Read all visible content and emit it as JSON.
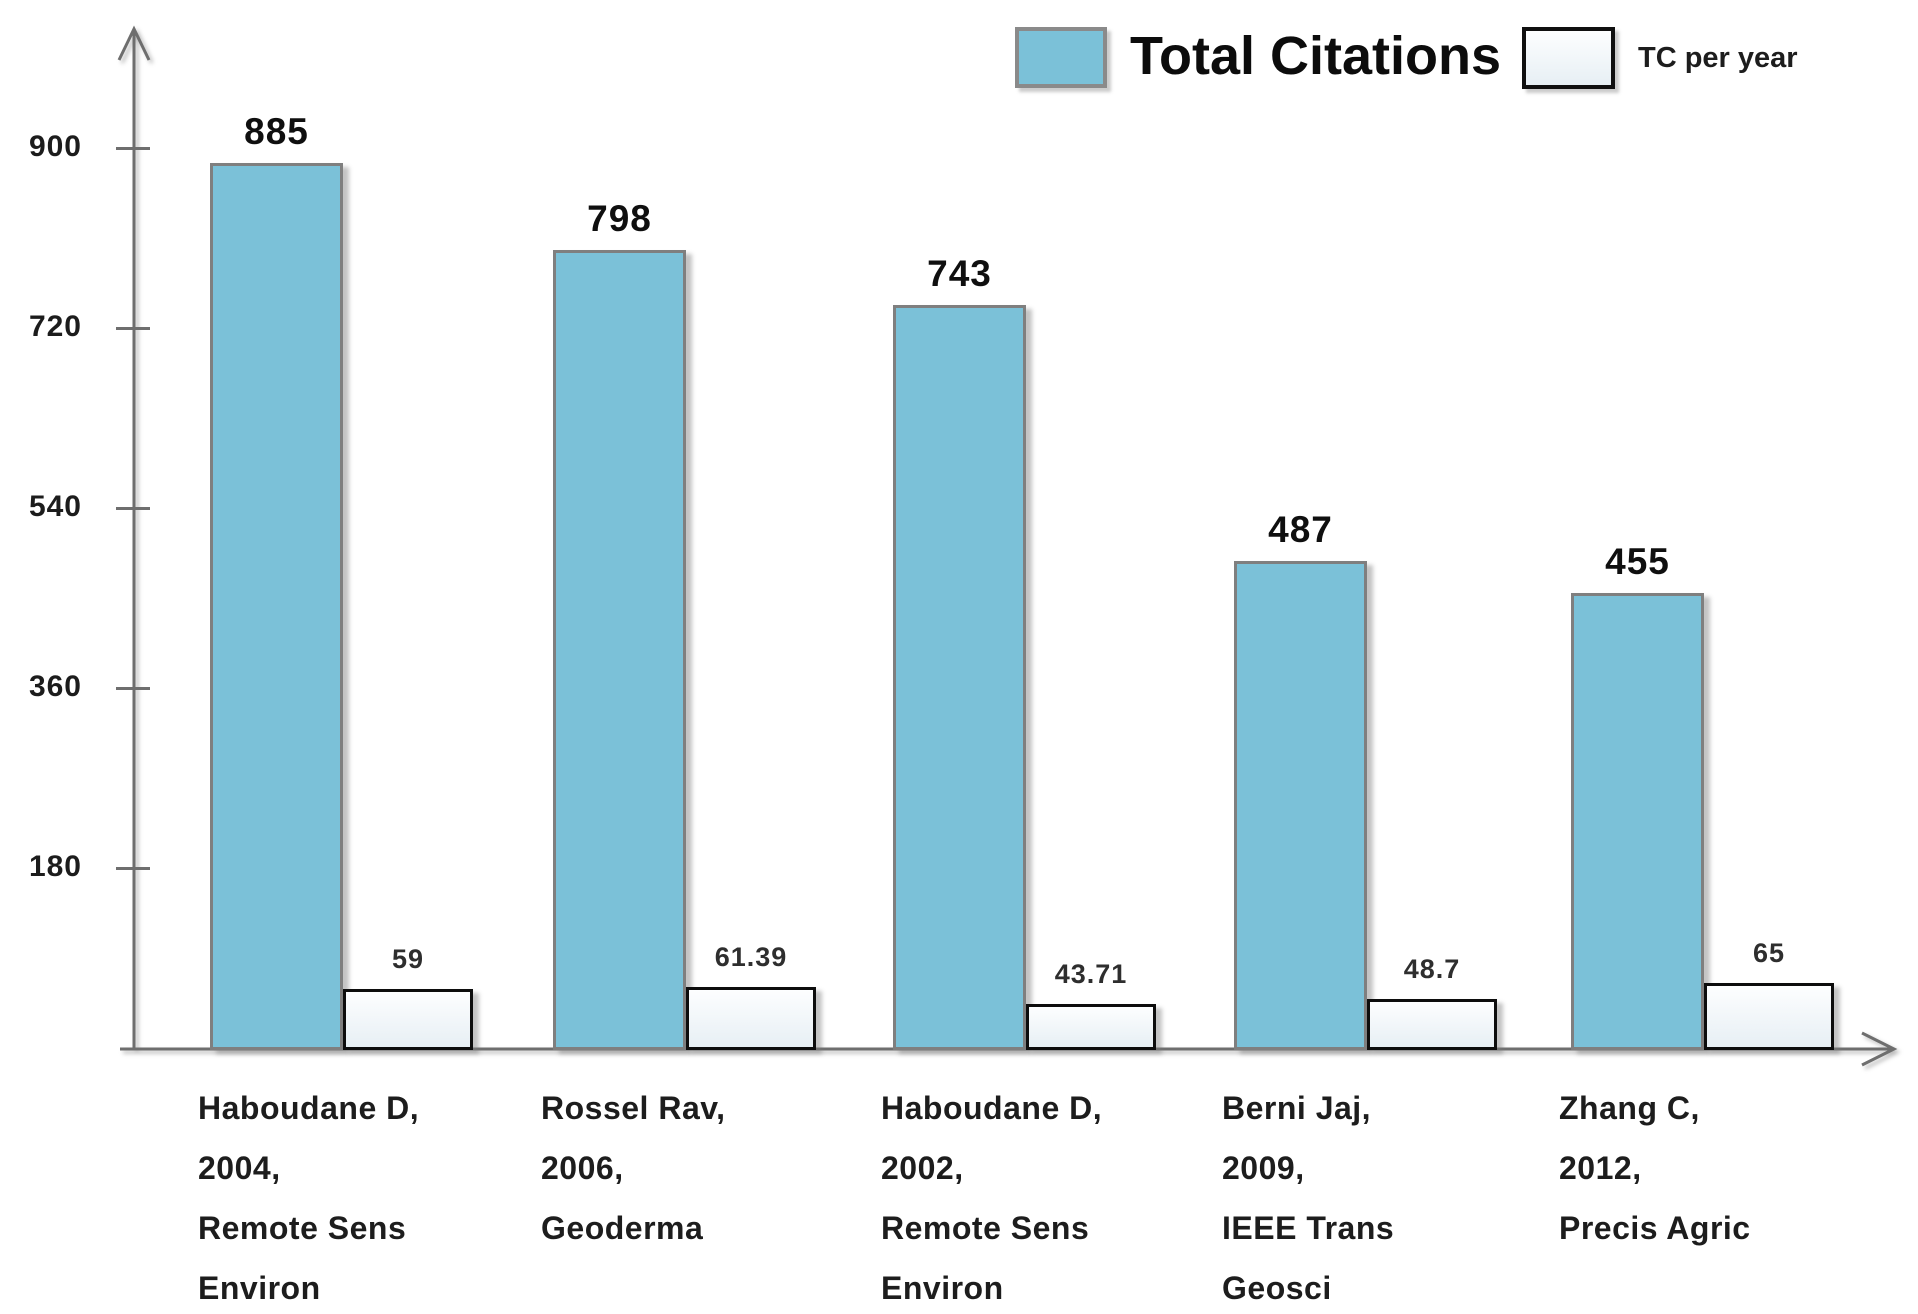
{
  "legend": {
    "items": [
      {
        "label": "Total Citations",
        "color": "#7bc1d8"
      },
      {
        "label": "TC per year",
        "color": "#eef4f8"
      }
    ]
  },
  "chart_data": {
    "type": "bar",
    "title": "",
    "xlabel": "",
    "ylabel": "",
    "grid": false,
    "legend_position": "top-right",
    "yticks": [
      180,
      360,
      540,
      720,
      900
    ],
    "ylim": [
      0,
      1020
    ],
    "categories": [
      [
        "Haboudane D,",
        "2004,",
        "Remote Sens",
        "Environ"
      ],
      [
        "Rossel Rav,",
        "2006,",
        "Geoderma"
      ],
      [
        "Haboudane D,",
        "2002,",
        "Remote Sens",
        "Environ"
      ],
      [
        "Berni Jaj,",
        "2009,",
        "IEEE Trans",
        "Geosci"
      ],
      [
        "Zhang C,",
        "2012,",
        "Precis Agric"
      ]
    ],
    "series": [
      {
        "name": "Total Citations",
        "color": "#7bc1d8",
        "values": [
          885,
          798,
          743,
          487,
          455
        ],
        "labels": [
          "885",
          "798",
          "743",
          "487",
          "455"
        ]
      },
      {
        "name": "TC per year",
        "color": "#eef4f8",
        "values": [
          59,
          61.39,
          43.71,
          48.7,
          65
        ],
        "labels": [
          "59",
          "61.39",
          "43.71",
          "48.7",
          "65"
        ]
      }
    ]
  }
}
